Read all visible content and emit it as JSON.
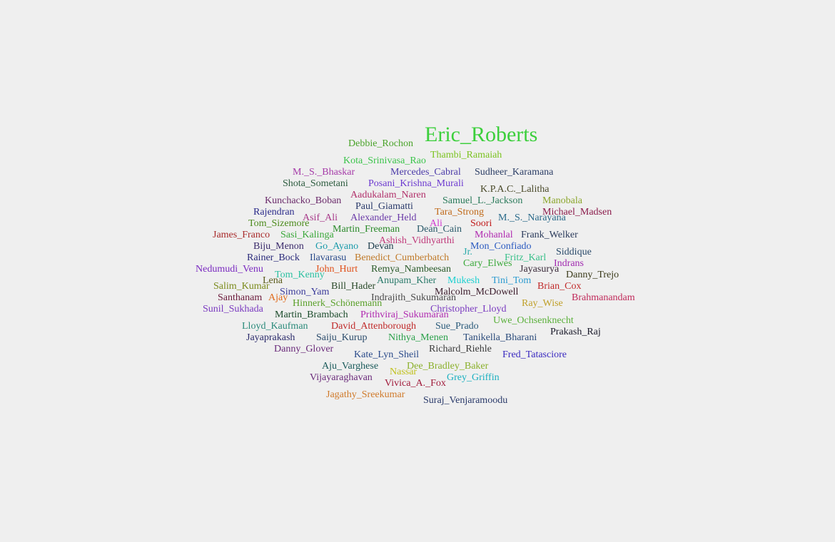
{
  "words": [
    {
      "text": "Eric_Roberts",
      "color": "#3ccf3c"
    },
    {
      "text": "Debbie_Rochon",
      "color": "#4aa32a"
    },
    {
      "text": "Thambi_Ramaiah",
      "color": "#7cc322"
    },
    {
      "text": "Kota_Srinivasa_Rao",
      "color": "#3bc44b"
    },
    {
      "text": "M._S._Bhaskar",
      "color": "#a53aa8"
    },
    {
      "text": "Mercedes_Cabral",
      "color": "#4b3aa8"
    },
    {
      "text": "Sudheer_Karamana",
      "color": "#2c3e66"
    },
    {
      "text": "Shota_Sometani",
      "color": "#2c5b3e"
    },
    {
      "text": "Posani_Krishna_Murali",
      "color": "#6c3ad0"
    },
    {
      "text": "Aadukalam_Naren",
      "color": "#b1306a"
    },
    {
      "text": "K.P.A.C._Lalitha",
      "color": "#4a4a2a"
    },
    {
      "text": "Kunchacko_Boban",
      "color": "#6a2a6a"
    },
    {
      "text": "Paul_Giamatti",
      "color": "#2a3a6a"
    },
    {
      "text": "Samuel_L._Jackson",
      "color": "#2a7a5a"
    },
    {
      "text": "Manobala",
      "color": "#8aa52a"
    },
    {
      "text": "Rajendran",
      "color": "#2a2a8a"
    },
    {
      "text": "Tara_Strong",
      "color": "#c06a1a"
    },
    {
      "text": "Michael_Madsen",
      "color": "#8a1a4a"
    },
    {
      "text": "Asif_Ali",
      "color": "#a83a8a"
    },
    {
      "text": "Alexander_Held",
      "color": "#6a3aa8"
    },
    {
      "text": "Ali",
      "color": "#d03ad0"
    },
    {
      "text": "Soori",
      "color": "#c01a1a"
    },
    {
      "text": "M._S._Narayana",
      "color": "#2a6a8a"
    },
    {
      "text": "Tom_Sizemore",
      "color": "#4a8a1a"
    },
    {
      "text": "James_Franco",
      "color": "#a82a2a"
    },
    {
      "text": "Sasi_Kalinga",
      "color": "#3aa83a"
    },
    {
      "text": "Martin_Freeman",
      "color": "#2a8a2a"
    },
    {
      "text": "Dean_Cain",
      "color": "#2a5a6a"
    },
    {
      "text": "Mohanlal",
      "color": "#b02ab0"
    },
    {
      "text": "Frank_Welker",
      "color": "#2a3a5a"
    },
    {
      "text": "Ashish_Vidhyarthi",
      "color": "#c03a7a"
    },
    {
      "text": "Biju_Menon",
      "color": "#3a2a6a"
    },
    {
      "text": "Go_Ayano",
      "color": "#1a9aaa"
    },
    {
      "text": "Devan",
      "color": "#1a3a4a"
    },
    {
      "text": "Mon_Confiado",
      "color": "#2a5ac0"
    },
    {
      "text": "Siddique",
      "color": "#2a4a6a"
    },
    {
      "text": "Jr.",
      "color": "#2aaaaa"
    },
    {
      "text": "Rainer_Bock",
      "color": "#2a2a7a"
    },
    {
      "text": "Ilavarasu",
      "color": "#2a4a8a"
    },
    {
      "text": "Benedict_Cumberbatch",
      "color": "#c07a2a"
    },
    {
      "text": "Fritz_Karl",
      "color": "#3ac08a"
    },
    {
      "text": "Cary_Elwes",
      "color": "#3aa83a"
    },
    {
      "text": "Indrans",
      "color": "#a02ab0"
    },
    {
      "text": "Nedumudi_Venu",
      "color": "#7a2ac0"
    },
    {
      "text": "John_Hurt",
      "color": "#e0501a"
    },
    {
      "text": "Remya_Nambeesan",
      "color": "#2a5a2a"
    },
    {
      "text": "Jayasurya",
      "color": "#3a2a3a"
    },
    {
      "text": "Danny_Trejo",
      "color": "#3a3a1a"
    },
    {
      "text": "Tom_Kenny",
      "color": "#2ac0a0"
    },
    {
      "text": "Lena",
      "color": "#5a5a1a"
    },
    {
      "text": "Anupam_Kher",
      "color": "#2a7a6a"
    },
    {
      "text": "Mukesh",
      "color": "#1ad0d0"
    },
    {
      "text": "Tini_Tom",
      "color": "#2a9ad0"
    },
    {
      "text": "Salim_Kumar",
      "color": "#7a8a1a"
    },
    {
      "text": "Bill_Hader",
      "color": "#2a4a2a"
    },
    {
      "text": "Brian_Cox",
      "color": "#c02a2a"
    },
    {
      "text": "Simon_Yam",
      "color": "#3a3a9a"
    },
    {
      "text": "Malcolm_McDowell",
      "color": "#3a1a2a"
    },
    {
      "text": "Santhanam",
      "color": "#6a1a3a"
    },
    {
      "text": "Ajay",
      "color": "#e06a1a"
    },
    {
      "text": "Indrajith_Sukumaran",
      "color": "#4a4a4a"
    },
    {
      "text": "Brahmanandam",
      "color": "#c02a5a"
    },
    {
      "text": "Hinnerk_Schönemann",
      "color": "#5aa02a"
    },
    {
      "text": "Ray_Wise",
      "color": "#c0a02a"
    },
    {
      "text": "Sunil_Sukhada",
      "color": "#7a3ac0"
    },
    {
      "text": "Christopher_Lloyd",
      "color": "#7a3ac0"
    },
    {
      "text": "Martin_Brambach",
      "color": "#1a4a2a"
    },
    {
      "text": "Prithviraj_Sukumaran",
      "color": "#b02ab0"
    },
    {
      "text": "Uwe_Ochsenknecht",
      "color": "#5ab03a"
    },
    {
      "text": "Lloyd_Kaufman",
      "color": "#2a8a7a"
    },
    {
      "text": "David_Attenborough",
      "color": "#c02a2a"
    },
    {
      "text": "Sue_Prado",
      "color": "#2a5a7a"
    },
    {
      "text": "Prakash_Raj",
      "color": "#1a1a2a"
    },
    {
      "text": "Jayaprakash",
      "color": "#2a2a6a"
    },
    {
      "text": "Saiju_Kurup",
      "color": "#2a4a6a"
    },
    {
      "text": "Nithya_Menen",
      "color": "#2aa04a"
    },
    {
      "text": "Tanikella_Bharani",
      "color": "#2a4a7a"
    },
    {
      "text": "Danny_Glover",
      "color": "#6a2a7a"
    },
    {
      "text": "Richard_Riehle",
      "color": "#3a3a3a"
    },
    {
      "text": "Kate_Lyn_Sheil",
      "color": "#2a4a8a"
    },
    {
      "text": "Fred_Tatasciore",
      "color": "#3a2ac0"
    },
    {
      "text": "Aju_Varghese",
      "color": "#1a5a5a"
    },
    {
      "text": "Dee_Bradley_Baker",
      "color": "#8ab02a"
    },
    {
      "text": "Nassar",
      "color": "#c0c01a"
    },
    {
      "text": "Vijayaraghavan",
      "color": "#6a2a7a"
    },
    {
      "text": "Grey_Griffin",
      "color": "#1ab0c0"
    },
    {
      "text": "Vivica_A._Fox",
      "color": "#a01a3a"
    },
    {
      "text": "Jagathy_Sreekumar",
      "color": "#d07a2a"
    },
    {
      "text": "Suraj_Venjaramoodu",
      "color": "#2a3a6a"
    }
  ]
}
